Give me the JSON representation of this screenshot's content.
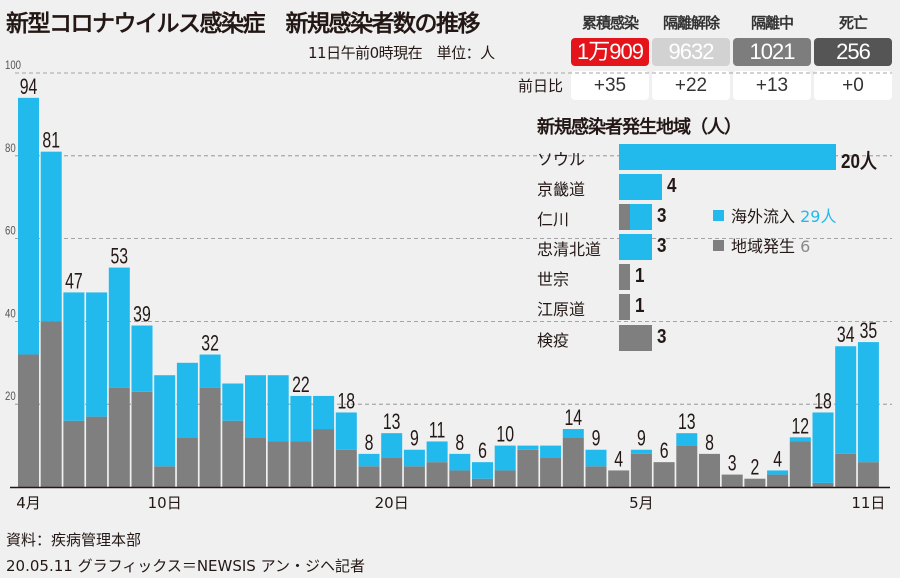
{
  "header": {
    "title": "新型コロナウイルス感染症　新規感染者数の推移",
    "subtitle": "11日午前0時現在　単位：人"
  },
  "summary": {
    "diff_label": "前日比",
    "items": [
      {
        "label": "累積感染",
        "value": "1万909",
        "diff": "+35",
        "color": "#e5141b",
        "text_color": "#ffffff"
      },
      {
        "label": "隔離解除",
        "value": "9632",
        "diff": "+22",
        "color": "#d2d2d2",
        "text_color": "#ffffff"
      },
      {
        "label": "隔離中",
        "value": "1021",
        "diff": "+13",
        "color": "#7d7d7d",
        "text_color": "#ffffff"
      },
      {
        "label": "死亡",
        "value": "256",
        "diff": "+0",
        "color": "#555555",
        "text_color": "#ffffff"
      }
    ]
  },
  "colors": {
    "imported": "#22b9ec",
    "local": "#7f7f7f",
    "background": "#f0f0f0"
  },
  "chart_data": [
    {
      "type": "bar",
      "stacked": true,
      "categories": [
        "4/4",
        "4/5",
        "4/6",
        "4/7",
        "4/8",
        "4/9",
        "4/10",
        "4/11",
        "4/12",
        "4/13",
        "4/14",
        "4/15",
        "4/16",
        "4/17",
        "4/18",
        "4/19",
        "4/20",
        "4/21",
        "4/22",
        "4/23",
        "4/24",
        "4/25",
        "4/26",
        "4/27",
        "4/28",
        "4/29",
        "4/30",
        "5/1",
        "5/2",
        "5/3",
        "5/4",
        "5/5",
        "5/6",
        "5/7",
        "5/8",
        "5/9",
        "5/10",
        "5/11"
      ],
      "x_tick_labels": [
        {
          "category": "4/4",
          "label": "4月"
        },
        {
          "category": "4/10",
          "label": "10日"
        },
        {
          "category": "4/20",
          "label": "20日"
        },
        {
          "category": "5/1",
          "label": "5月"
        },
        {
          "category": "5/11",
          "label": "11日"
        }
      ],
      "totals": [
        94,
        81,
        47,
        47,
        53,
        39,
        27,
        30,
        32,
        25,
        27,
        27,
        22,
        22,
        18,
        8,
        13,
        9,
        11,
        8,
        6,
        10,
        10,
        10,
        14,
        9,
        4,
        9,
        6,
        13,
        8,
        3,
        2,
        4,
        12,
        18,
        34,
        35
      ],
      "data_labels": [
        "94",
        "81",
        "47",
        null,
        "53",
        "39",
        null,
        null,
        "32",
        null,
        null,
        null,
        "22",
        null,
        "18",
        "8",
        "13",
        "9",
        "11",
        "8",
        "6",
        "10",
        null,
        null,
        "14",
        "9",
        "4",
        "9",
        "6",
        "13",
        "8",
        "3",
        "2",
        "4",
        "12",
        "18",
        "34",
        "35"
      ],
      "series": [
        {
          "key": "local",
          "values": [
            32,
            40,
            16,
            17,
            24,
            23,
            5,
            12,
            24,
            16,
            12,
            11,
            11,
            14,
            9,
            5,
            7,
            5,
            6,
            4,
            2,
            4,
            9,
            7,
            12,
            5,
            4,
            8,
            6,
            10,
            8,
            3,
            2,
            3,
            11,
            1,
            8,
            6
          ]
        },
        {
          "key": "imported",
          "values": [
            62,
            41,
            31,
            30,
            29,
            16,
            22,
            18,
            8,
            9,
            15,
            16,
            11,
            8,
            9,
            3,
            6,
            4,
            5,
            4,
            4,
            6,
            1,
            3,
            2,
            4,
            0,
            1,
            0,
            3,
            0,
            0,
            0,
            1,
            1,
            17,
            26,
            29
          ]
        }
      ],
      "ylim": [
        0,
        100
      ],
      "y_ticks": [
        20,
        40,
        60,
        80,
        100
      ],
      "grid": true
    },
    {
      "type": "bar",
      "orientation": "horizontal",
      "stacked": true,
      "title": "新規感染者発生地域（人）",
      "categories": [
        "ソウル",
        "京畿道",
        "仁川",
        "忠清北道",
        "世宗",
        "江原道",
        "検疫"
      ],
      "value_labels": [
        "20人",
        "4",
        "3",
        "3",
        "1",
        "1",
        "3"
      ],
      "series": [
        {
          "key": "local",
          "name": "地域発生",
          "total_label": "6",
          "values": [
            0,
            0,
            1,
            0,
            1,
            1,
            3
          ]
        },
        {
          "key": "imported",
          "name": "海外流入",
          "total_label": "29人",
          "values": [
            20,
            4,
            2,
            3,
            0,
            0,
            0
          ]
        }
      ],
      "legend": "right"
    }
  ],
  "footer": {
    "source": "資料：疾病管理本部",
    "credit": "20.05.11 グラフィックス＝NEWSIS アン・ジヘ記者"
  }
}
